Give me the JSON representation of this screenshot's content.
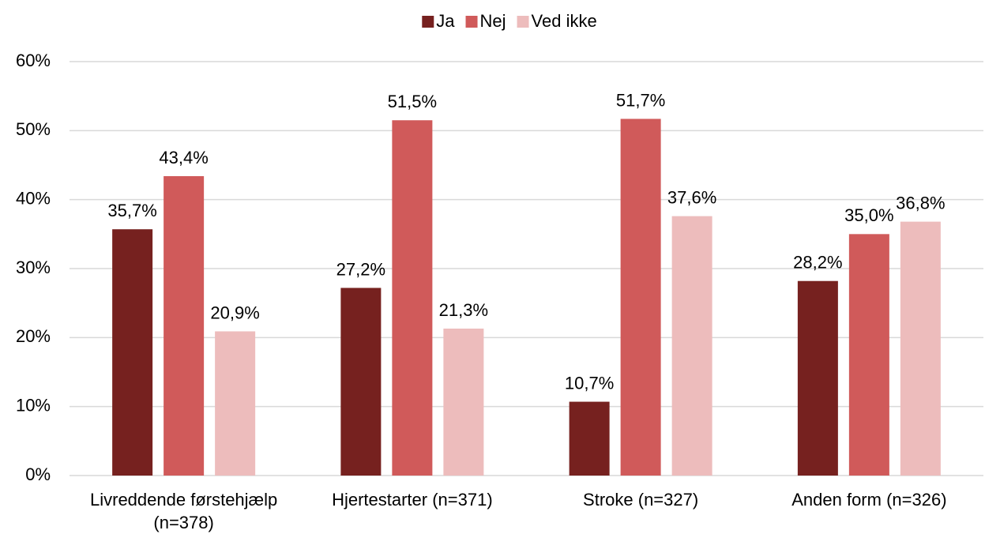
{
  "chart_data": {
    "type": "bar",
    "categories": [
      "Livreddende førstehjælp (n=378)",
      "Hjertestarter (n=371)",
      "Stroke (n=327)",
      "Anden form (n=326)"
    ],
    "series": [
      {
        "name": "Ja",
        "color": "#76211f",
        "values": [
          35.7,
          27.2,
          10.7,
          28.2
        ],
        "value_labels": [
          "35,7%",
          "27,2%",
          "10,7%",
          "28,2%"
        ]
      },
      {
        "name": "Nej",
        "color": "#d05a5a",
        "values": [
          43.4,
          51.5,
          51.7,
          35.0
        ],
        "value_labels": [
          "43,4%",
          "51,5%",
          "51,7%",
          "35,0%"
        ]
      },
      {
        "name": "Ved ikke",
        "color": "#edbcbc",
        "values": [
          20.9,
          21.3,
          37.6,
          36.8
        ],
        "value_labels": [
          "20,9%",
          "21,3%",
          "37,6%",
          "36,8%"
        ]
      }
    ],
    "ylim": [
      0,
      60
    ],
    "yticks": [
      {
        "value": 0,
        "label": "0%"
      },
      {
        "value": 10,
        "label": "10%"
      },
      {
        "value": 20,
        "label": "20%"
      },
      {
        "value": 30,
        "label": "30%"
      },
      {
        "value": 40,
        "label": "40%"
      },
      {
        "value": 50,
        "label": "50%"
      },
      {
        "value": 60,
        "label": "60%"
      }
    ],
    "grid": true,
    "legend": "top"
  }
}
